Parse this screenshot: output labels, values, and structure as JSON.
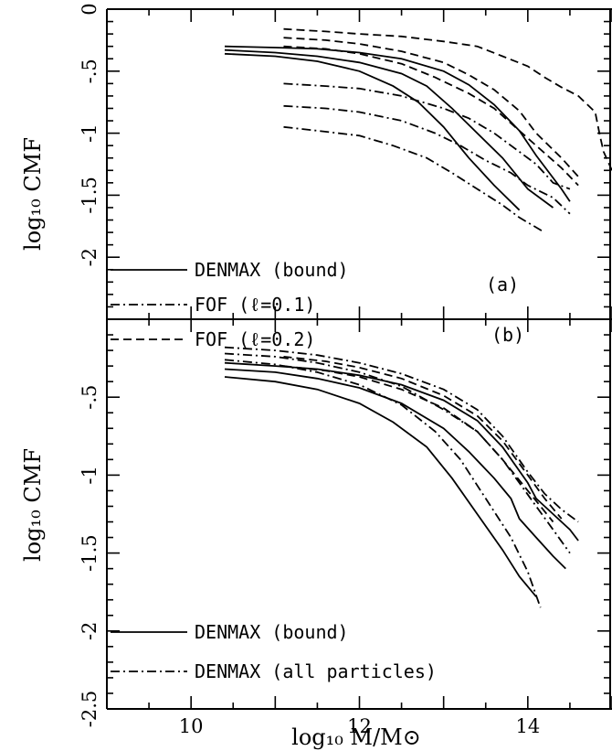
{
  "figure": {
    "xlabel": "log₁₀ M/M⊙",
    "ylabel": "log₁₀ CMF"
  },
  "chart_data": [
    {
      "type": "line",
      "panel_label": "(a)",
      "xlim": [
        9,
        15
      ],
      "ylim": [
        -2.5,
        0
      ],
      "xticks": [
        10,
        12,
        14
      ],
      "yticks": [
        0,
        -0.5,
        -1,
        -1.5,
        -2
      ],
      "ytick_labels": [
        "0",
        "-.5",
        "-1",
        "-1.5",
        "-2"
      ],
      "xlabel": "",
      "ylabel": "log₁₀ CMF",
      "legend_position": "lower-left",
      "legend": [
        {
          "label": "DENMAX (bound)",
          "style": "solid"
        },
        {
          "label": "FOF (ℓ=0.1)",
          "style": "dashdot"
        },
        {
          "label": "FOF (ℓ=0.2)",
          "style": "dashed"
        }
      ],
      "series": [
        {
          "style": "solid",
          "x": [
            10.4,
            11.0,
            11.5,
            12.0,
            12.5,
            13.0,
            13.3,
            13.6,
            13.9,
            14.1,
            14.4,
            14.5
          ],
          "y": [
            -0.3,
            -0.31,
            -0.32,
            -0.35,
            -0.4,
            -0.5,
            -0.61,
            -0.77,
            -0.98,
            -1.18,
            -1.45,
            -1.55
          ]
        },
        {
          "style": "solid",
          "x": [
            10.4,
            11.0,
            11.5,
            12.0,
            12.5,
            12.8,
            13.1,
            13.4,
            13.7,
            14.0,
            14.3
          ],
          "y": [
            -0.33,
            -0.35,
            -0.38,
            -0.43,
            -0.52,
            -0.62,
            -0.8,
            -1.0,
            -1.2,
            -1.45,
            -1.6
          ]
        },
        {
          "style": "solid",
          "x": [
            10.4,
            11.0,
            11.5,
            12.0,
            12.4,
            12.7,
            13.0,
            13.3,
            13.6,
            13.9
          ],
          "y": [
            -0.36,
            -0.38,
            -0.42,
            -0.5,
            -0.62,
            -0.75,
            -0.95,
            -1.2,
            -1.42,
            -1.62
          ]
        },
        {
          "style": "dashdot",
          "x": [
            11.1,
            11.6,
            12.0,
            12.5,
            13.0,
            13.3,
            13.6,
            13.9,
            14.1,
            14.3,
            14.5
          ],
          "y": [
            -0.6,
            -0.62,
            -0.64,
            -0.7,
            -0.8,
            -0.88,
            -1.0,
            -1.15,
            -1.25,
            -1.4,
            -1.45
          ]
        },
        {
          "style": "dashdot",
          "x": [
            11.1,
            11.6,
            12.0,
            12.5,
            12.9,
            13.2,
            13.5,
            13.8,
            14.0,
            14.3,
            14.5
          ],
          "y": [
            -0.78,
            -0.8,
            -0.83,
            -0.9,
            -1.0,
            -1.1,
            -1.22,
            -1.32,
            -1.42,
            -1.52,
            -1.65
          ]
        },
        {
          "style": "dashdot",
          "x": [
            11.1,
            11.5,
            12.0,
            12.4,
            12.8,
            13.1,
            13.4,
            13.7,
            13.9,
            14.2
          ],
          "y": [
            -0.95,
            -0.98,
            -1.02,
            -1.1,
            -1.2,
            -1.32,
            -1.45,
            -1.58,
            -1.68,
            -1.8
          ]
        },
        {
          "style": "dashed",
          "x": [
            11.1,
            11.6,
            12.0,
            12.5,
            13.0,
            13.4,
            13.7,
            14.0,
            14.2,
            14.4,
            14.6,
            14.8,
            14.85,
            14.9,
            15.0
          ],
          "y": [
            -0.16,
            -0.18,
            -0.2,
            -0.22,
            -0.26,
            -0.3,
            -0.38,
            -0.46,
            -0.55,
            -0.63,
            -0.7,
            -0.83,
            -1.0,
            -1.15,
            -1.3
          ]
        },
        {
          "style": "dashed",
          "x": [
            11.1,
            11.6,
            12.0,
            12.5,
            13.0,
            13.3,
            13.6,
            13.9,
            14.1,
            14.4,
            14.6
          ],
          "y": [
            -0.23,
            -0.25,
            -0.28,
            -0.34,
            -0.43,
            -0.53,
            -0.65,
            -0.82,
            -1.0,
            -1.2,
            -1.35
          ]
        },
        {
          "style": "dashed",
          "x": [
            11.1,
            11.6,
            12.0,
            12.5,
            12.9,
            13.3,
            13.6,
            13.9,
            14.1,
            14.4,
            14.6
          ],
          "y": [
            -0.3,
            -0.32,
            -0.36,
            -0.44,
            -0.55,
            -0.68,
            -0.8,
            -0.98,
            -1.1,
            -1.28,
            -1.42
          ]
        }
      ]
    },
    {
      "type": "line",
      "panel_label": "(b)",
      "xlim": [
        9,
        15
      ],
      "ylim": [
        -2.5,
        0
      ],
      "xticks": [
        10,
        12,
        14
      ],
      "xtick_labels": [
        "10",
        "12",
        "14"
      ],
      "yticks": [
        -0.5,
        -1,
        -1.5,
        -2,
        -2.5
      ],
      "ytick_labels": [
        "-.5",
        "-1",
        "-1.5",
        "-2",
        "-2.5"
      ],
      "xlabel": "log₁₀ M/M⊙",
      "ylabel": "log₁₀ CMF",
      "legend_position": "lower-left",
      "legend": [
        {
          "label": "DENMAX (bound)",
          "style": "solid"
        },
        {
          "label": "DENMAX (all particles)",
          "style": "dashdot"
        }
      ],
      "series": [
        {
          "style": "solid",
          "x": [
            10.4,
            11.0,
            11.5,
            12.0,
            12.5,
            13.0,
            13.4,
            13.7,
            14.0,
            14.1,
            14.3,
            14.5,
            14.6
          ],
          "y": [
            -0.28,
            -0.3,
            -0.32,
            -0.36,
            -0.42,
            -0.52,
            -0.65,
            -0.82,
            -1.05,
            -1.15,
            -1.25,
            -1.35,
            -1.42
          ]
        },
        {
          "style": "solid",
          "x": [
            10.4,
            11.0,
            11.5,
            12.0,
            12.5,
            13.0,
            13.3,
            13.6,
            13.8,
            13.9,
            14.1,
            14.3,
            14.45
          ],
          "y": [
            -0.32,
            -0.34,
            -0.38,
            -0.44,
            -0.54,
            -0.7,
            -0.85,
            -1.02,
            -1.15,
            -1.28,
            -1.4,
            -1.52,
            -1.6
          ]
        },
        {
          "style": "solid",
          "x": [
            10.4,
            11.0,
            11.5,
            12.0,
            12.4,
            12.8,
            13.1,
            13.4,
            13.7,
            13.9,
            14.1
          ],
          "y": [
            -0.37,
            -0.4,
            -0.45,
            -0.54,
            -0.66,
            -0.82,
            -1.02,
            -1.25,
            -1.48,
            -1.65,
            -1.78
          ]
        },
        {
          "style": "dashdot",
          "x": [
            10.4,
            11.0,
            11.5,
            12.0,
            12.5,
            13.0,
            13.4,
            13.7,
            14.0,
            14.2,
            14.4,
            14.6
          ],
          "y": [
            -0.18,
            -0.2,
            -0.23,
            -0.28,
            -0.35,
            -0.45,
            -0.58,
            -0.75,
            -0.98,
            -1.12,
            -1.22,
            -1.3
          ]
        },
        {
          "style": "dashdot",
          "x": [
            10.4,
            11.0,
            11.5,
            12.0,
            12.5,
            13.0,
            13.4,
            13.7,
            13.9,
            14.1,
            14.3,
            14.5
          ],
          "y": [
            -0.22,
            -0.24,
            -0.28,
            -0.34,
            -0.43,
            -0.58,
            -0.72,
            -0.9,
            -1.05,
            -1.2,
            -1.35,
            -1.5
          ]
        },
        {
          "style": "dashdot",
          "x": [
            10.4,
            11.0,
            11.5,
            12.0,
            12.5,
            12.9,
            13.2,
            13.5,
            13.8,
            14.0,
            14.15
          ],
          "y": [
            -0.26,
            -0.29,
            -0.34,
            -0.42,
            -0.55,
            -0.72,
            -0.9,
            -1.15,
            -1.4,
            -1.62,
            -1.85
          ]
        },
        {
          "style": "dashed",
          "x": [
            11.1,
            11.6,
            12.0,
            12.5,
            13.0,
            13.4,
            13.7,
            14.0,
            14.2,
            14.4
          ],
          "y": [
            -0.24,
            -0.27,
            -0.31,
            -0.38,
            -0.49,
            -0.62,
            -0.78,
            -1.0,
            -1.15,
            -1.28
          ]
        },
        {
          "style": "dashed",
          "x": [
            11.1,
            11.6,
            12.0,
            12.5,
            13.0,
            13.4,
            13.7,
            14.0,
            14.3
          ],
          "y": [
            -0.3,
            -0.33,
            -0.37,
            -0.45,
            -0.57,
            -0.72,
            -0.9,
            -1.1,
            -1.3
          ]
        }
      ]
    }
  ]
}
